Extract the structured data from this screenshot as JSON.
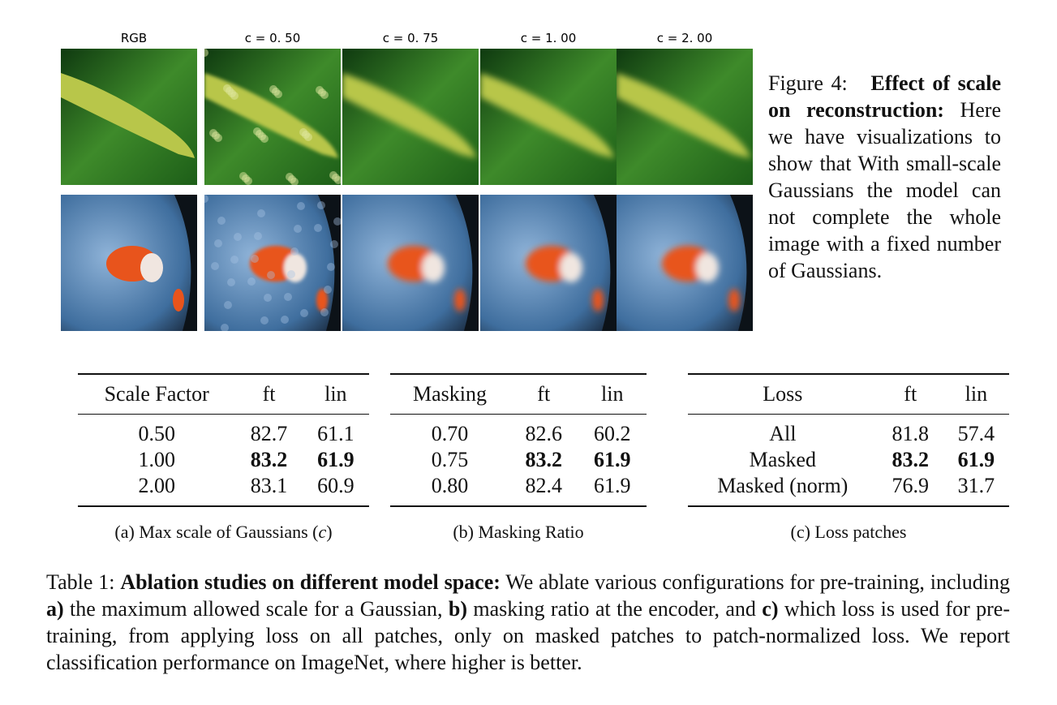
{
  "figure": {
    "columns": [
      "RGB",
      "c = 0. 50",
      "c = 0. 75",
      "c = 1. 00",
      "c = 2. 00"
    ],
    "caption": {
      "label": "Figure 4:",
      "title": "Effect of scale on reconstruction:",
      "text": "Here we have visualizations to show that With small-scale Gaussians the model can not complete the whole image with a fixed number of Gaussians."
    }
  },
  "tables": [
    {
      "headers": [
        "Scale Factor",
        "ft",
        "lin"
      ],
      "rows": [
        [
          "0.50",
          "82.7",
          "61.1"
        ],
        [
          "1.00",
          "83.2",
          "61.9"
        ],
        [
          "2.00",
          "83.1",
          "60.9"
        ]
      ],
      "bold_row": 1,
      "caption": [
        "(a) Max scale of Gaussians (",
        "c",
        ")"
      ]
    },
    {
      "headers": [
        "Masking",
        "ft",
        "lin"
      ],
      "rows": [
        [
          "0.70",
          "82.6",
          "60.2"
        ],
        [
          "0.75",
          "83.2",
          "61.9"
        ],
        [
          "0.80",
          "82.4",
          "61.9"
        ]
      ],
      "bold_row": 1,
      "caption": [
        "(b) Masking Ratio"
      ]
    },
    {
      "headers": [
        "Loss",
        "ft",
        "lin"
      ],
      "rows": [
        [
          "All",
          "81.8",
          "57.4"
        ],
        [
          "Masked",
          "83.2",
          "61.9"
        ],
        [
          "Masked (norm)",
          "76.9",
          "31.7"
        ]
      ],
      "bold_row": 1,
      "caption": [
        "(c) Loss patches"
      ]
    }
  ],
  "table_caption": [
    {
      "text": "Table 1: ",
      "bold": false
    },
    {
      "text": "Ablation studies on different model space:",
      "bold": true
    },
    {
      "text": " We ablate various configurations for pre-training, including ",
      "bold": false
    },
    {
      "text": "a)",
      "bold": true
    },
    {
      "text": " the maximum allowed scale for a Gaussian, ",
      "bold": false
    },
    {
      "text": "b)",
      "bold": true
    },
    {
      "text": " masking ratio at the encoder, and ",
      "bold": false
    },
    {
      "text": "c)",
      "bold": true
    },
    {
      "text": " which loss is used for pre-training, from applying loss on all patches, only on masked patches to patch-normalized loss. We report classification performance on ImageNet, where higher is better.",
      "bold": false
    }
  ]
}
